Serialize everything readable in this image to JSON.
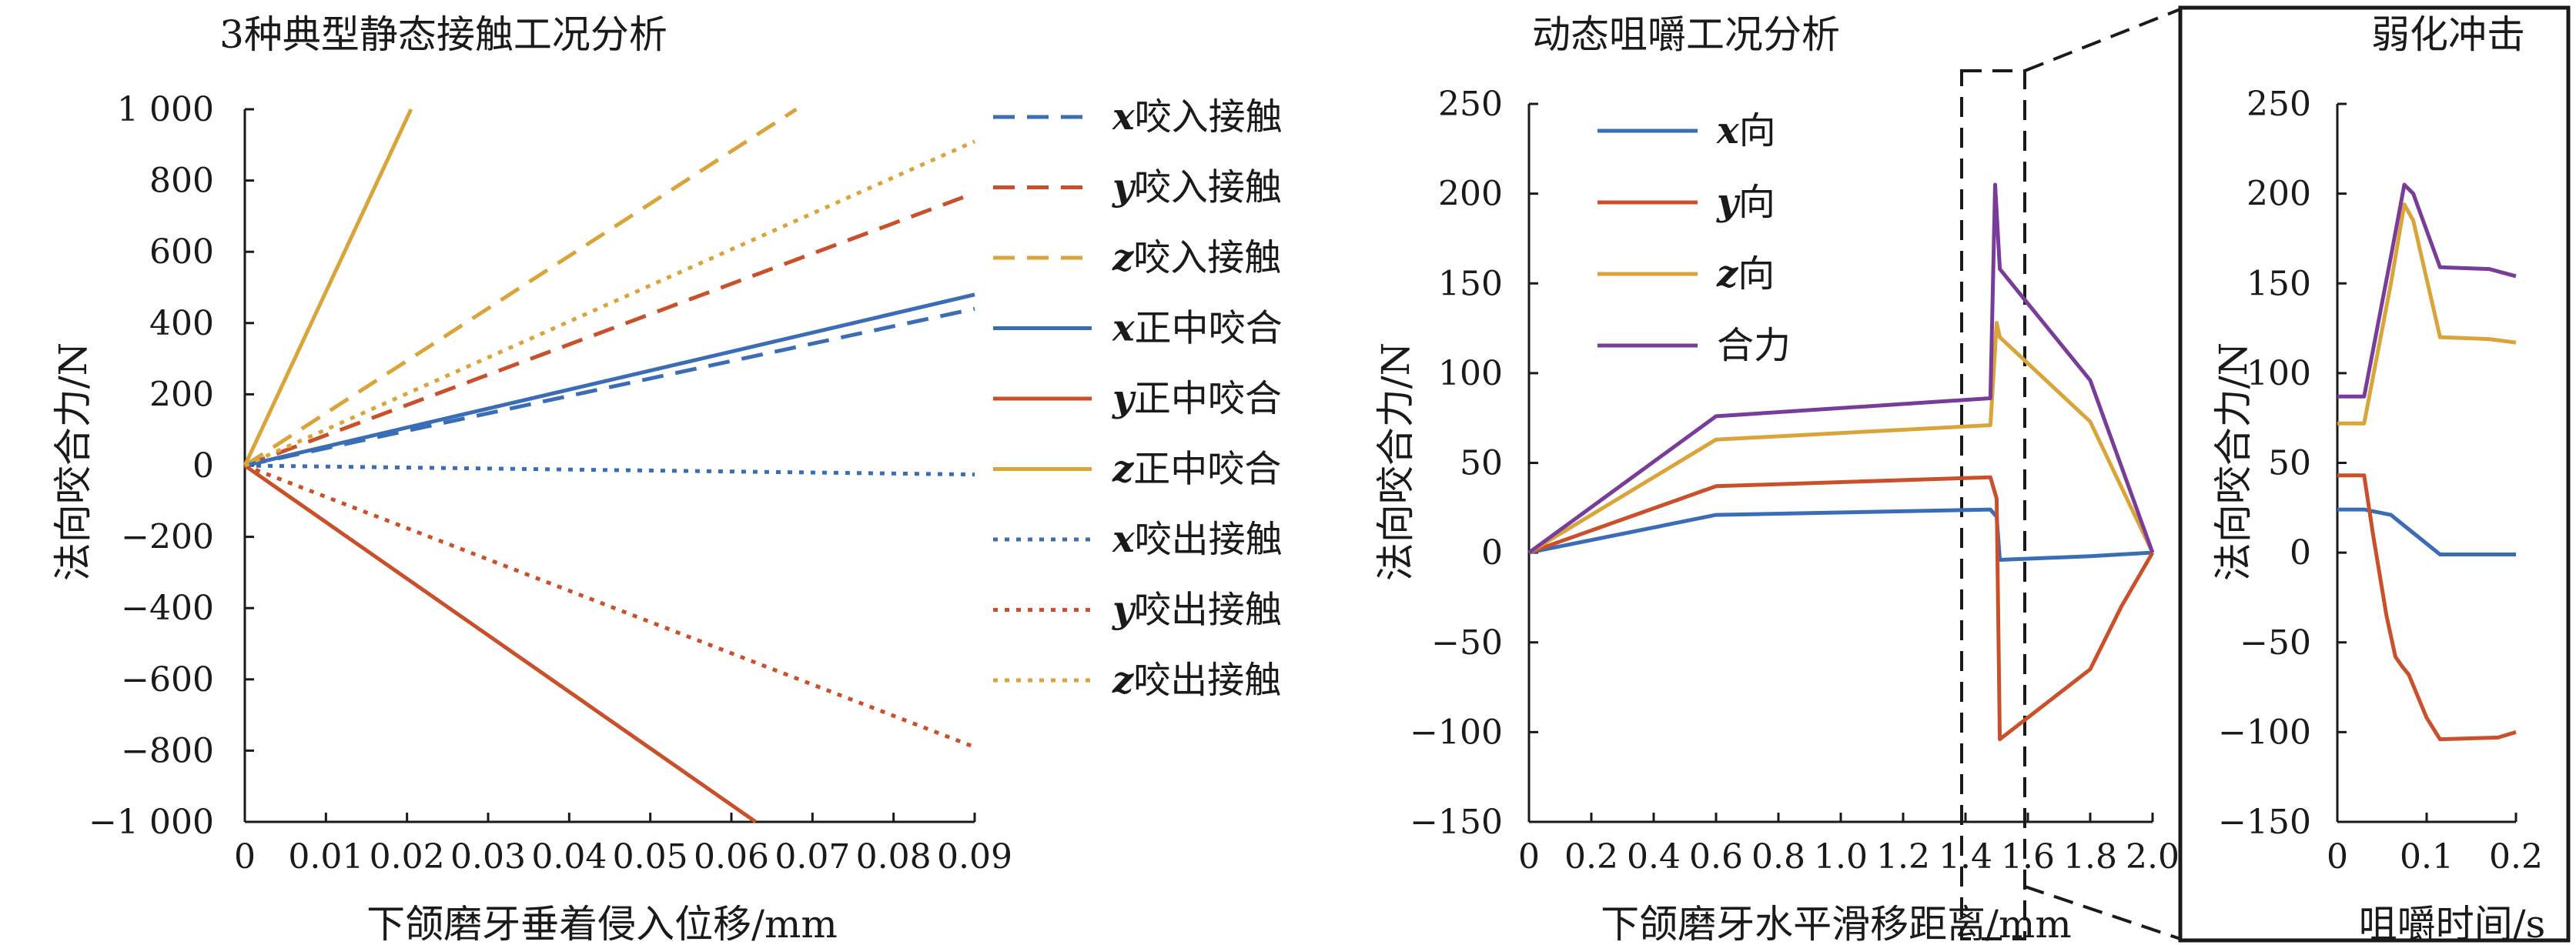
{
  "colors": {
    "x": "#3A6DB5",
    "y": "#C9502A",
    "z": "#D9A43A",
    "resultant": "#7A3C99"
  },
  "chart_data": [
    {
      "type": "line",
      "title": "3种典型静态接触工况分析",
      "xlabel": "下颌磨牙垂着侵入位移/mm",
      "ylabel": "法向咬合力/N",
      "xlim": [
        0,
        0.09
      ],
      "ylim": [
        -1000,
        1000
      ],
      "xticks": [
        "0",
        "0.01",
        "0.02",
        "0.03",
        "0.04",
        "0.05",
        "0.06",
        "0.07",
        "0.08",
        "0.09"
      ],
      "yticks": [
        "1 000",
        "800",
        "600",
        "400",
        "200",
        "0",
        "−200",
        "−400",
        "−600",
        "−800",
        "−1 000"
      ],
      "legend_position": "right",
      "series": [
        {
          "var": "x",
          "name": "咬入接触",
          "color": "x",
          "dash": "dashed",
          "points": [
            [
              0,
              0
            ],
            [
              0.09,
              440
            ]
          ]
        },
        {
          "var": "y",
          "name": "咬入接触",
          "color": "y",
          "dash": "dashed",
          "points": [
            [
              0,
              0
            ],
            [
              0.09,
              765
            ]
          ]
        },
        {
          "var": "z",
          "name": "咬入接触",
          "color": "z",
          "dash": "dashed",
          "points": [
            [
              0,
              0
            ],
            [
              0.068,
              1000
            ]
          ]
        },
        {
          "var": "x",
          "name": "正中咬合",
          "color": "x",
          "dash": "solid",
          "points": [
            [
              0,
              0
            ],
            [
              0.09,
              480
            ]
          ]
        },
        {
          "var": "y",
          "name": "正中咬合",
          "color": "y",
          "dash": "solid",
          "points": [
            [
              0,
              0
            ],
            [
              0.063,
              -1000
            ]
          ]
        },
        {
          "var": "z",
          "name": "正中咬合",
          "color": "z",
          "dash": "solid",
          "points": [
            [
              0,
              0
            ],
            [
              0.0205,
              1000
            ]
          ]
        },
        {
          "var": "x",
          "name": "咬出接触",
          "color": "x",
          "dash": "dotted",
          "points": [
            [
              0,
              0
            ],
            [
              0.09,
              -25
            ]
          ]
        },
        {
          "var": "y",
          "name": "咬出接触",
          "color": "y",
          "dash": "dotted",
          "points": [
            [
              0,
              0
            ],
            [
              0.09,
              -790
            ]
          ]
        },
        {
          "var": "z",
          "name": "咬出接触",
          "color": "z",
          "dash": "dotted",
          "points": [
            [
              0,
              0
            ],
            [
              0.09,
              910
            ]
          ]
        }
      ]
    },
    {
      "type": "line",
      "title": "动态咀嚼工况分析",
      "xlabel": "下颌磨牙水平滑移距离/mm",
      "ylabel": "法向咬合力/N",
      "xlim": [
        0,
        2.0
      ],
      "ylim": [
        -150,
        250
      ],
      "xticks": [
        "0",
        "0.2",
        "0.4",
        "0.6",
        "0.8",
        "1.0",
        "1.2",
        "1.4",
        "1.6",
        "1.8",
        "2.0"
      ],
      "yticks": [
        "250",
        "200",
        "150",
        "100",
        "50",
        "0",
        "−50",
        "−100",
        "−150"
      ],
      "legend_position": "top-left",
      "series": [
        {
          "var": "x",
          "name": "向",
          "color": "x",
          "points": [
            [
              0,
              0
            ],
            [
              0.6,
              21
            ],
            [
              1.48,
              24
            ],
            [
              1.5,
              20
            ],
            [
              1.51,
              -4
            ],
            [
              1.8,
              -2
            ],
            [
              2.0,
              0
            ]
          ]
        },
        {
          "var": "y",
          "name": "向",
          "color": "y",
          "points": [
            [
              0,
              0
            ],
            [
              0.6,
              37
            ],
            [
              1.48,
              42
            ],
            [
              1.5,
              30
            ],
            [
              1.51,
              -104
            ],
            [
              1.8,
              -65
            ],
            [
              1.9,
              -30
            ],
            [
              2.0,
              0
            ]
          ]
        },
        {
          "var": "z",
          "name": "向",
          "color": "z",
          "points": [
            [
              0,
              0
            ],
            [
              0.6,
              63
            ],
            [
              1.48,
              71
            ],
            [
              1.5,
              128
            ],
            [
              1.51,
              120
            ],
            [
              1.8,
              73
            ],
            [
              2.0,
              0
            ]
          ]
        },
        {
          "var": "",
          "name": "合力",
          "color": "resultant",
          "points": [
            [
              0,
              0
            ],
            [
              0.6,
              76
            ],
            [
              1.48,
              86
            ],
            [
              1.495,
              205
            ],
            [
              1.51,
              158
            ],
            [
              1.8,
              96
            ],
            [
              2.0,
              0
            ]
          ]
        }
      ]
    },
    {
      "type": "line",
      "title": "弱化冲击",
      "xlabel": "咀嚼时间/s",
      "ylabel": "法向咬合力/N",
      "xlim": [
        0,
        0.2
      ],
      "ylim": [
        -150,
        250
      ],
      "xticks": [
        "0",
        "0.1",
        "0.2"
      ],
      "yticks": [
        "250",
        "200",
        "150",
        "100",
        "50",
        "0",
        "−50",
        "−100",
        "−150"
      ],
      "series": [
        {
          "var": "x",
          "color": "x",
          "points": [
            [
              0,
              24
            ],
            [
              0.03,
              24
            ],
            [
              0.06,
              21
            ],
            [
              0.07,
              17
            ],
            [
              0.1,
              5
            ],
            [
              0.115,
              -1
            ],
            [
              0.2,
              -1
            ]
          ]
        },
        {
          "var": "y",
          "color": "y",
          "points": [
            [
              0,
              43
            ],
            [
              0.03,
              43
            ],
            [
              0.04,
              10
            ],
            [
              0.055,
              -35
            ],
            [
              0.065,
              -58
            ],
            [
              0.072,
              -63
            ],
            [
              0.08,
              -68
            ],
            [
              0.1,
              -92
            ],
            [
              0.115,
              -104
            ],
            [
              0.18,
              -103
            ],
            [
              0.2,
              -100
            ]
          ]
        },
        {
          "var": "z",
          "color": "z",
          "points": [
            [
              0,
              72
            ],
            [
              0.03,
              72
            ],
            [
              0.06,
              150
            ],
            [
              0.075,
              194
            ],
            [
              0.085,
              185
            ],
            [
              0.115,
              120
            ],
            [
              0.17,
              119
            ],
            [
              0.2,
              117
            ]
          ]
        },
        {
          "var": "",
          "color": "resultant",
          "points": [
            [
              0,
              87
            ],
            [
              0.03,
              87
            ],
            [
              0.06,
              165
            ],
            [
              0.075,
              205
            ],
            [
              0.085,
              200
            ],
            [
              0.115,
              159
            ],
            [
              0.17,
              158
            ],
            [
              0.2,
              154
            ]
          ]
        }
      ]
    }
  ]
}
